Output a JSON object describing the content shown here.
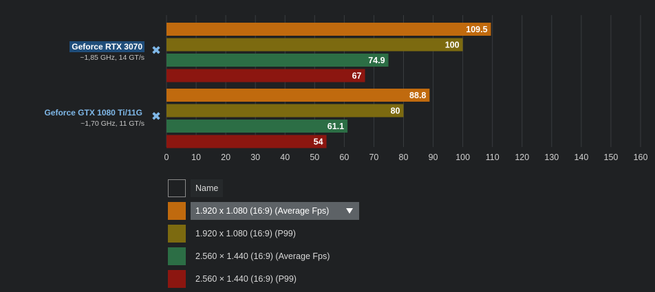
{
  "gpus": [
    {
      "name": "Geforce RTX 3070",
      "spec": "~1,85 GHz, 14 GT/s"
    },
    {
      "name": "Geforce GTX 1080 Ti/11G",
      "spec": "~1,70 GHz, 11 GT/s"
    }
  ],
  "legend": {
    "header": "Name",
    "items": [
      {
        "label": "1.920 x 1.080 (16:9) (Average Fps)",
        "color": "#c06a0e"
      },
      {
        "label": "1.920 x 1.080 (16:9) (P99)",
        "color": "#7c6a10"
      },
      {
        "label": "2.560 × 1.440 (16:9) (Average Fps)",
        "color": "#2c6e45"
      },
      {
        "label": "2.560 × 1.440 (16:9) (P99)",
        "color": "#8c1610"
      }
    ]
  },
  "chart_data": {
    "type": "bar",
    "orientation": "horizontal",
    "categories": [
      "Geforce RTX 3070",
      "Geforce GTX 1080 Ti/11G"
    ],
    "series": [
      {
        "name": "1.920 x 1.080 (16:9) (Average Fps)",
        "color": "#c06a0e",
        "values": [
          109.5,
          88.8
        ],
        "labels": [
          "109.5",
          "88.8"
        ]
      },
      {
        "name": "1.920 x 1.080 (16:9) (P99)",
        "color": "#7c6a10",
        "values": [
          100,
          80
        ],
        "labels": [
          "100",
          "80"
        ]
      },
      {
        "name": "2.560 × 1.440 (16:9) (Average Fps)",
        "color": "#2c6e45",
        "values": [
          74.9,
          61.1
        ],
        "labels": [
          "74.9",
          "61.1"
        ]
      },
      {
        "name": "2.560 × 1.440 (16:9) (P99)",
        "color": "#8c1610",
        "values": [
          67,
          54
        ],
        "labels": [
          "67",
          "54"
        ]
      }
    ],
    "xlim": [
      0,
      160
    ],
    "xticks": [
      "0",
      "10",
      "20",
      "30",
      "40",
      "50",
      "60",
      "70",
      "80",
      "90",
      "100",
      "110",
      "120",
      "130",
      "140",
      "150",
      "160"
    ],
    "grid": true,
    "legend_placement": "bottom",
    "title": "",
    "xlabel": "",
    "ylabel": ""
  }
}
